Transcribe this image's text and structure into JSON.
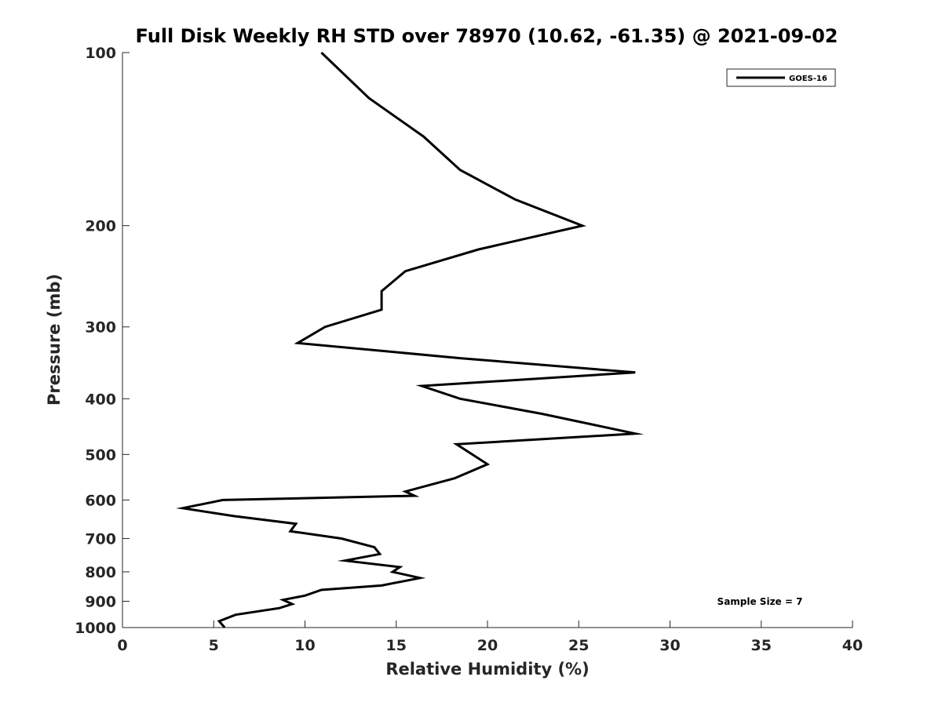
{
  "chart_data": {
    "type": "line",
    "title": "Full Disk Weekly RH STD over 78970 (10.62, -61.35) @ 2021-09-02",
    "xlabel": "Relative Humidity (%)",
    "ylabel": "Pressure (mb)",
    "xlim": [
      0,
      40
    ],
    "ylim": [
      100,
      1000
    ],
    "yscale": "log",
    "y_reversed": true,
    "x_ticks": [
      0,
      5,
      10,
      15,
      20,
      25,
      30,
      35,
      40
    ],
    "x_tick_labels": [
      "0",
      "5",
      "10",
      "15",
      "20",
      "25",
      "30",
      "35",
      "40"
    ],
    "y_ticks": [
      100,
      200,
      300,
      400,
      500,
      600,
      700,
      800,
      900,
      1000
    ],
    "y_tick_labels": [
      "100",
      "200",
      "300",
      "400",
      "500",
      "600",
      "700",
      "800",
      "900",
      "1000"
    ],
    "legend": {
      "position": "top-right",
      "entries": [
        "GOES-16"
      ]
    },
    "annotation": "Sample Size = 7",
    "series": [
      {
        "name": "GOES-16",
        "color": "#000000",
        "x": [
          10.9,
          13.5,
          16.5,
          18.5,
          21.5,
          25.2,
          19.5,
          15.5,
          14.2,
          14.2,
          11.1,
          9.6,
          18.5,
          28.1,
          16.4,
          18.5,
          23.0,
          28.1,
          18.3,
          20.0,
          18.2,
          15.5,
          16.0,
          5.5,
          3.3,
          6.1,
          9.5,
          9.2,
          12.0,
          13.8,
          14.1,
          12.2,
          15.2,
          14.8,
          16.3,
          14.2,
          10.9,
          10.0,
          8.8,
          9.3,
          8.6,
          6.2,
          5.3,
          5.6
        ],
        "y": [
          100,
          120,
          140,
          160,
          180,
          200,
          220,
          240,
          260,
          280,
          300,
          320,
          340,
          360,
          380,
          400,
          425,
          460,
          480,
          520,
          550,
          580,
          590,
          600,
          620,
          640,
          660,
          680,
          700,
          725,
          745,
          765,
          785,
          800,
          820,
          845,
          860,
          880,
          895,
          910,
          925,
          950,
          975,
          1000
        ]
      }
    ]
  }
}
